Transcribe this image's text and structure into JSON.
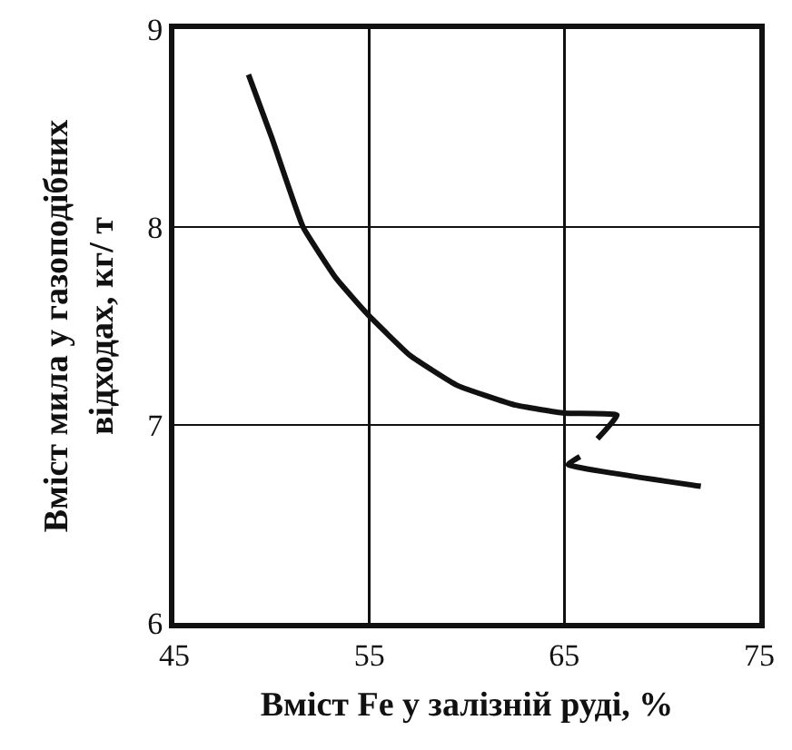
{
  "chart_data": {
    "type": "line",
    "xlabel": "Вміст Fe у залізній руді, %",
    "ylabel": "Вміст мила у газоподібних\nвідходах, кг/ т",
    "x": [
      48.8,
      50.0,
      51.6,
      53.3,
      54.9,
      57.1,
      59.5,
      62.5,
      65.0,
      67.7,
      66.7,
      null,
      65.8,
      65.2,
      72.0
    ],
    "series": [
      {
        "color": "#111111",
        "values": [
          8.77,
          8.45,
          8.0,
          7.74,
          7.56,
          7.35,
          7.2,
          7.1,
          7.06,
          7.05,
          6.93,
          null,
          6.84,
          6.8,
          6.69
        ]
      }
    ],
    "xlim": [
      45,
      75
    ],
    "xticks": [
      45,
      55,
      65,
      75
    ],
    "ylim": [
      6,
      9
    ],
    "yticks": [
      6,
      7,
      8,
      9
    ],
    "grid": true,
    "marker": "none",
    "line_style": "solid"
  }
}
